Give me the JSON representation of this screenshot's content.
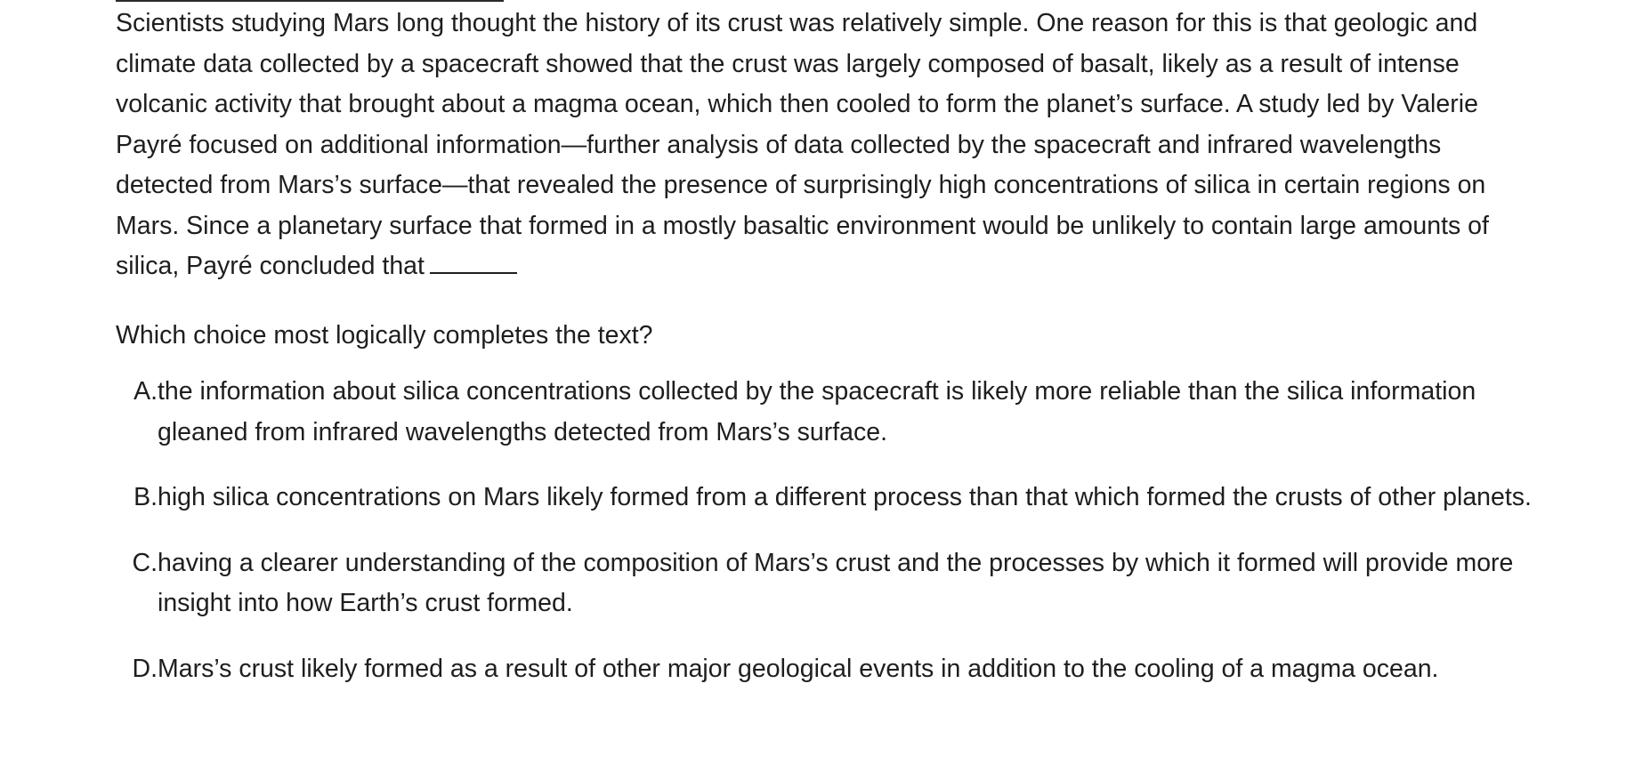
{
  "passage": {
    "text": "Scientists studying Mars long thought the history of its crust was relatively simple. One reason for this is that geologic and climate data collected by a spacecraft showed that the crust was largely composed of basalt, likely as a result of intense volcanic activity that brought about a magma ocean, which then cooled to form the planet’s surface. A study led by Valerie Payré focused on additional information—further analysis of data collected by the spacecraft and infrared wavelengths detected from Mars’s surface—that revealed the presence of surprisingly high concentrations of silica in certain regions on Mars. Since a planetary surface that formed in a mostly basaltic environment would be unlikely to contain large amounts of silica, Payré concluded that"
  },
  "question": {
    "prompt": "Which choice most logically completes the text?"
  },
  "choices": [
    {
      "letter": "A.",
      "text": "the information about silica concentrations collected by the spacecraft is likely more reliable than the silica information gleaned from infrared wavelengths detected from Mars’s surface."
    },
    {
      "letter": "B.",
      "text": "high silica concentrations on Mars likely formed from a different process than that which formed the crusts of other planets."
    },
    {
      "letter": "C.",
      "text": "having a clearer understanding of the composition of Mars’s crust and the processes by which it formed will provide more insight into how Earth’s crust formed."
    },
    {
      "letter": "D.",
      "text": "Mars’s crust likely formed as a result of other major geological events in addition to the cooling of a magma ocean."
    }
  ]
}
